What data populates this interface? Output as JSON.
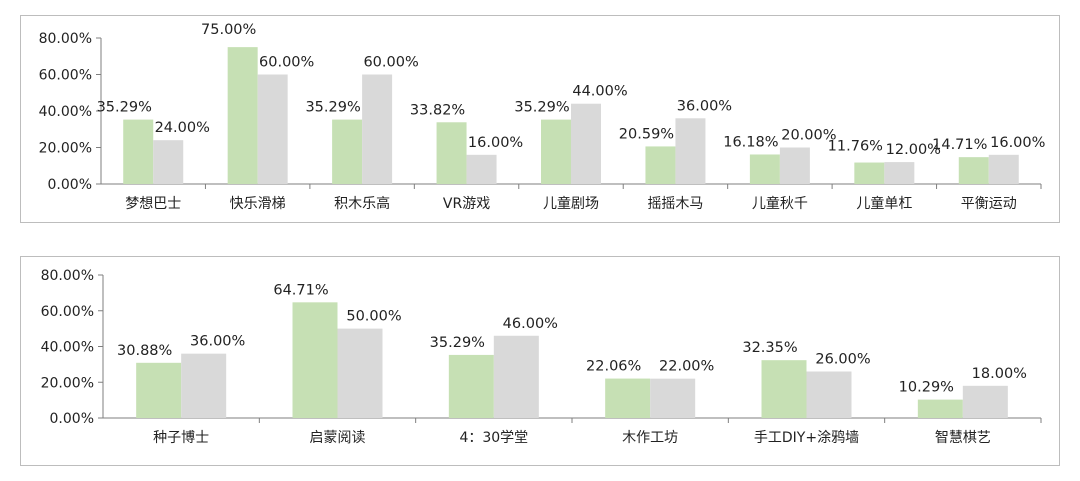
{
  "colors": {
    "series_a": "#c6e0b4",
    "series_b": "#d9d9d9",
    "axis": "#7f7f7f"
  },
  "chart_data": [
    {
      "type": "bar",
      "ylim": [
        0,
        80
      ],
      "yticks": [
        "80.00%",
        "60.00%",
        "40.00%",
        "20.00%",
        "0.00%"
      ],
      "categories": [
        "梦想巴士",
        "快乐滑梯",
        "积木乐高",
        "VR游戏",
        "儿童剧场",
        "摇摇木马",
        "儿童秋千",
        "儿童单杠",
        "平衡运动"
      ],
      "series": [
        {
          "values": [
            35.29,
            75.0,
            35.29,
            33.82,
            35.29,
            20.59,
            16.18,
            11.76,
            14.71
          ],
          "labels": [
            "35.29%",
            "75.00%",
            "35.29%",
            "33.82%",
            "35.29%",
            "20.59%",
            "16.18%",
            "11.76%",
            "14.71%"
          ]
        },
        {
          "values": [
            24.0,
            60.0,
            60.0,
            16.0,
            44.0,
            36.0,
            20.0,
            12.0,
            16.0
          ],
          "labels": [
            "24.00%",
            "60.00%",
            "60.00%",
            "16.00%",
            "44.00%",
            "36.00%",
            "20.00%",
            "12.00%",
            "16.00%"
          ]
        }
      ]
    },
    {
      "type": "bar",
      "ylim": [
        0,
        80
      ],
      "yticks": [
        "80.00%",
        "60.00%",
        "40.00%",
        "20.00%",
        "0.00%"
      ],
      "categories": [
        "种子博士",
        "启蒙阅读",
        "4：30学堂",
        "木作工坊",
        "手工DIY+涂鸦墙",
        "智慧棋艺"
      ],
      "series": [
        {
          "values": [
            30.88,
            64.71,
            35.29,
            22.06,
            32.35,
            10.29
          ],
          "labels": [
            "30.88%",
            "64.71%",
            "35.29%",
            "22.06%",
            "32.35%",
            "10.29%"
          ]
        },
        {
          "values": [
            36.0,
            50.0,
            46.0,
            22.0,
            26.0,
            18.0
          ],
          "labels": [
            "36.00%",
            "50.00%",
            "46.00%",
            "22.00%",
            "26.00%",
            "18.00%"
          ]
        }
      ]
    }
  ]
}
